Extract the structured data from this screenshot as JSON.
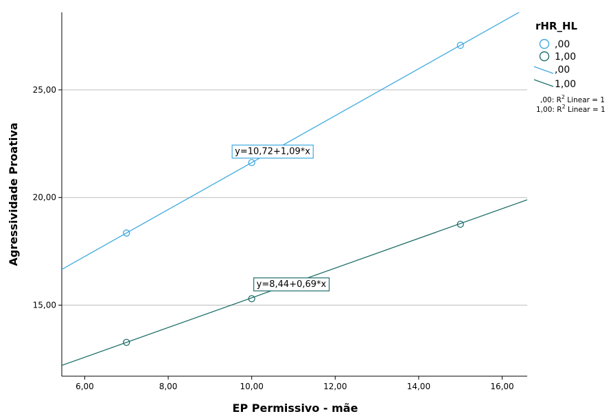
{
  "chart_data": {
    "type": "scatter",
    "xlabel": "EP Permissivo - mãe",
    "ylabel": "Agressividade Proativa",
    "xlim": [
      5.45,
      16.6
    ],
    "ylim": [
      11.7,
      28.6
    ],
    "x_ticks": [
      "6,00",
      "8,00",
      "10,00",
      "12,00",
      "14,00",
      "16,00"
    ],
    "x_tick_values": [
      6,
      8,
      10,
      12,
      14,
      16
    ],
    "y_ticks": [
      "15,00",
      "20,00",
      "25,00"
    ],
    "y_tick_values": [
      15,
      20,
      25
    ],
    "grid": "horizontal",
    "legend": {
      "title": "rHR_HL",
      "placement": "right",
      "point_labels": [
        ",00",
        "1,00"
      ],
      "line_labels": [
        ",00",
        "1,00"
      ],
      "notes": [
        {
          "prefix": ",00: R",
          "sup": "2",
          "suffix": " Linear = 1"
        },
        {
          "prefix": "1,00: R",
          "sup": "2",
          "suffix": " Linear = 1"
        }
      ]
    },
    "series": [
      {
        "name": ",00",
        "color": "#3fa9e0",
        "points": [
          {
            "x": 7,
            "y": 18.35
          },
          {
            "x": 10,
            "y": 21.62
          },
          {
            "x": 15,
            "y": 27.07
          }
        ],
        "intercept": 10.72,
        "slope": 1.09,
        "equation": "y=10,72+1,09*x",
        "equation_at_x": 10.5
      },
      {
        "name": "1,00",
        "color": "#1f6f6b",
        "points": [
          {
            "x": 7,
            "y": 13.27
          },
          {
            "x": 10,
            "y": 15.3
          },
          {
            "x": 15,
            "y": 18.76
          }
        ],
        "intercept": 8.44,
        "slope": 0.69,
        "equation": "y=8,44+0,69*x",
        "equation_at_x": 10.95
      }
    ]
  }
}
